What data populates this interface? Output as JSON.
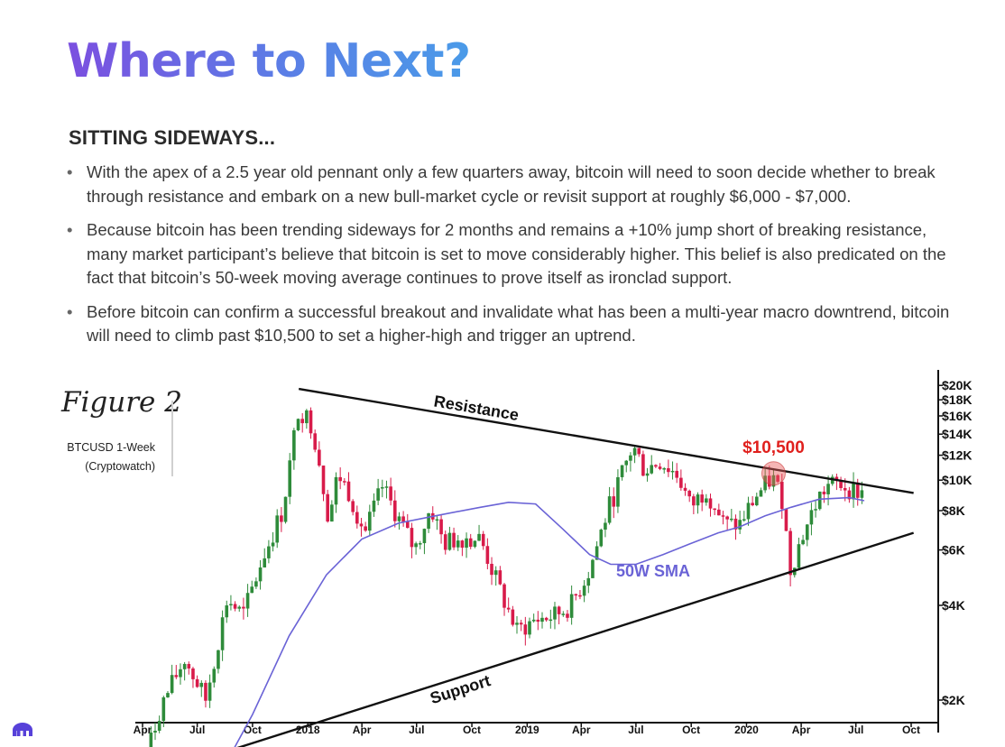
{
  "page": {
    "title": "Where to Next?",
    "subtitle": "SITTING SIDEWAYS...",
    "bullets": [
      "With the apex of a 2.5 year old pennant only a few quarters away, bitcoin will need to soon decide whether to break through resistance and embark on a new bull-market cycle or revisit support at roughly $6,000 - $7,000.",
      "Because bitcoin has been trending sideways for 2 months and remains a +10% jump short of breaking resistance, many market participant’s believe that bitcoin is set to move considerably higher. This belief is also predicated on the fact that bitcoin’s 50-week moving average continues to prove itself as ironclad support.",
      "Before bitcoin can confirm a successful breakout and invalidate what has been a multi-year macro downtrend, bitcoin will need to climb past $10,500 to set a higher-high and trigger an uptrend."
    ],
    "figure_label": "Figure 2",
    "figure_source_line1": "BTCUSD 1-Week",
    "figure_source_line2": "(Cryptowatch)",
    "logo_icon": "kraken-logo-icon",
    "bullet_glyph": "•"
  },
  "colors": {
    "up": "#2e8b3a",
    "down": "#d81b4a",
    "sma": "#6a63d6",
    "callout": "#e0201d",
    "trendline": "#111111",
    "logo": "#5741d9"
  },
  "chart_data": {
    "type": "candlestick",
    "symbol": "BTCUSD 1-Week",
    "y_scale": "log",
    "x_ticks": [
      "Apr",
      "Jul",
      "Oct",
      "2018",
      "Apr",
      "Jul",
      "Oct",
      "2019",
      "Apr",
      "Jul",
      "Oct",
      "2020",
      "Apr",
      "Jul",
      "Oct"
    ],
    "x_tick_dates": [
      "2017-04-01",
      "2017-07-01",
      "2017-10-01",
      "2018-01-01",
      "2018-04-01",
      "2018-07-01",
      "2018-10-01",
      "2019-01-01",
      "2019-04-01",
      "2019-07-01",
      "2019-10-01",
      "2020-01-01",
      "2020-04-01",
      "2020-07-01",
      "2020-10-01"
    ],
    "y_ticks": [
      {
        "label": "$20K",
        "value": 20000
      },
      {
        "label": "$18K",
        "value": 18000
      },
      {
        "label": "$16K",
        "value": 16000
      },
      {
        "label": "$14K",
        "value": 14000
      },
      {
        "label": "$12K",
        "value": 12000
      },
      {
        "label": "$10K",
        "value": 10000
      },
      {
        "label": "$8K",
        "value": 8000
      },
      {
        "label": "$6K",
        "value": 6000
      },
      {
        "label": "$4K",
        "value": 4000
      },
      {
        "label": "$2K",
        "value": 2000
      }
    ],
    "path_points": [
      [
        "2017-04-01",
        1200
      ],
      [
        "2017-05-01",
        1900
      ],
      [
        "2017-06-10",
        2700
      ],
      [
        "2017-07-15",
        2000
      ],
      [
        "2017-08-20",
        4200
      ],
      [
        "2017-09-15",
        3700
      ],
      [
        "2017-10-20",
        5800
      ],
      [
        "2017-11-20",
        8000
      ],
      [
        "2017-12-17",
        17000
      ],
      [
        "2018-01-08",
        15000
      ],
      [
        "2018-01-20",
        11500
      ],
      [
        "2018-02-05",
        7500
      ],
      [
        "2018-02-20",
        10500
      ],
      [
        "2018-03-10",
        9200
      ],
      [
        "2018-04-06",
        6800
      ],
      [
        "2018-05-05",
        9500
      ],
      [
        "2018-06-28",
        6000
      ],
      [
        "2018-07-25",
        8200
      ],
      [
        "2018-08-15",
        6300
      ],
      [
        "2018-09-15",
        6600
      ],
      [
        "2018-10-15",
        6500
      ],
      [
        "2018-11-20",
        4300
      ],
      [
        "2018-12-15",
        3300
      ],
      [
        "2019-01-15",
        3600
      ],
      [
        "2019-02-15",
        3700
      ],
      [
        "2019-03-15",
        4000
      ],
      [
        "2019-04-15",
        5200
      ],
      [
        "2019-05-15",
        8000
      ],
      [
        "2019-06-26",
        12800
      ],
      [
        "2019-07-15",
        10800
      ],
      [
        "2019-08-10",
        11500
      ],
      [
        "2019-09-10",
        10300
      ],
      [
        "2019-09-30",
        8200
      ],
      [
        "2019-10-26",
        9400
      ],
      [
        "2019-11-25",
        7200
      ],
      [
        "2019-12-20",
        7200
      ],
      [
        "2020-01-15",
        8800
      ],
      [
        "2020-02-13",
        10200
      ],
      [
        "2020-03-01",
        8700
      ],
      [
        "2020-03-13",
        5200
      ],
      [
        "2020-04-05",
        6800
      ],
      [
        "2020-04-30",
        8800
      ],
      [
        "2020-05-15",
        9600
      ],
      [
        "2020-06-05",
        9700
      ],
      [
        "2020-07-05",
        9200
      ],
      [
        "2020-07-15",
        9200
      ]
    ],
    "series": [
      {
        "name": "50W SMA",
        "points": [
          [
            "2017-08-01",
            1100
          ],
          [
            "2017-10-01",
            1800
          ],
          [
            "2017-12-01",
            3200
          ],
          [
            "2018-02-01",
            5000
          ],
          [
            "2018-04-01",
            6500
          ],
          [
            "2018-06-01",
            7300
          ],
          [
            "2018-08-01",
            7700
          ],
          [
            "2018-10-15",
            8200
          ],
          [
            "2018-12-01",
            8500
          ],
          [
            "2019-01-15",
            8400
          ],
          [
            "2019-03-01",
            7000
          ],
          [
            "2019-04-15",
            5800
          ],
          [
            "2019-05-20",
            5400
          ],
          [
            "2019-07-01",
            5400
          ],
          [
            "2019-08-15",
            5800
          ],
          [
            "2019-10-01",
            6300
          ],
          [
            "2019-11-15",
            6800
          ],
          [
            "2019-12-20",
            7100
          ],
          [
            "2020-02-01",
            7700
          ],
          [
            "2020-03-15",
            8200
          ],
          [
            "2020-05-01",
            8700
          ],
          [
            "2020-06-20",
            8800
          ],
          [
            "2020-07-15",
            8600
          ]
        ]
      }
    ],
    "trendlines": [
      {
        "name": "Resistance",
        "from": [
          "2017-12-17",
          19500
        ],
        "to": [
          "2020-10-05",
          9100
        ]
      },
      {
        "name": "Support",
        "from": [
          "2017-04-01",
          1130
        ],
        "to": [
          "2020-10-05",
          6800
        ]
      }
    ],
    "annotations": [
      {
        "text": "Resistance",
        "kind": "trendline-label"
      },
      {
        "text": "Support",
        "kind": "trendline-label"
      },
      {
        "text": "50W SMA",
        "kind": "series-label"
      },
      {
        "text": "$10,500",
        "kind": "callout",
        "date": "2020-02-15",
        "value": 10500
      }
    ]
  }
}
